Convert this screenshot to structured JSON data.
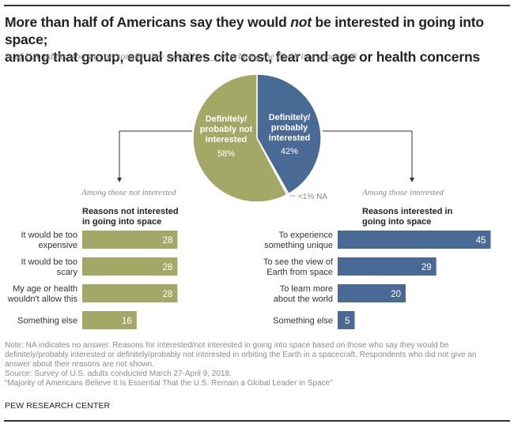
{
  "title": {
    "line1_pre": "More than half of Americans say they would ",
    "line1_em": "not",
    "line1_post": " be interested in going into space;",
    "line2": "among that group, equal shares cite cost, fear and age or health concerns"
  },
  "subtitle": "% of U.S. adults who say, personally, they would be ___ in orbiting the Earth in a spacecraft",
  "colors": {
    "not_interested": "#a3a866",
    "interested": "#4a6a96",
    "na": "#d9d9c8"
  },
  "chart_data": [
    {
      "type": "pie",
      "title": "% of U.S. adults who say, personally, they would be ___ in orbiting the Earth in a spacecraft",
      "slices": [
        {
          "label_lines": [
            "Definitely/",
            "probably",
            "interested"
          ],
          "label": "Definitely/probably interested",
          "value": 42,
          "value_label": "42%"
        },
        {
          "label_lines": [
            "Definitely/",
            "probably not",
            "interested"
          ],
          "label": "Definitely/probably not interested",
          "value": 58,
          "value_label": "58%"
        },
        {
          "label": "NA",
          "value": 0.5,
          "value_label": "<1% NA"
        }
      ]
    },
    {
      "type": "bar",
      "orientation": "horizontal",
      "caption": "Among those not interested",
      "title": "Reasons not interested in going into space",
      "title_lines": [
        "Reasons not interested",
        "in going into space"
      ],
      "categories": [
        "It would be too expensive",
        "It would be too scary",
        "My age or health wouldn't allow this",
        "Something else"
      ],
      "category_lines": [
        [
          "It would be too",
          "expensive"
        ],
        [
          "It would be too",
          "scary"
        ],
        [
          "My age or health",
          "wouldn't allow this"
        ],
        [
          "Something else"
        ]
      ],
      "values": [
        28,
        28,
        28,
        16
      ]
    },
    {
      "type": "bar",
      "orientation": "horizontal",
      "caption": "Among those interested",
      "title": "Reasons interested in going into space",
      "title_lines": [
        "Reasons interested  in",
        "going into space"
      ],
      "categories": [
        "To experience something unique",
        "To see the view of Earth from space",
        "To learn more about the world",
        "Something else"
      ],
      "category_lines": [
        [
          "To experience",
          "something unique"
        ],
        [
          "To see the view of",
          "Earth from space"
        ],
        [
          "To learn more",
          "about the world"
        ],
        [
          "Something else"
        ]
      ],
      "values": [
        45,
        29,
        20,
        5
      ]
    }
  ],
  "notes": [
    "Note: NA indicates no answer. Reasons for interested/not interested in going into space based on those who say they would be",
    "definitely/probably interested or definitely/probably not interested in orbiting the Earth in a spacecraft. Respondents who did not give an",
    "answer about their reasons are not shown.",
    "Source: Survey of U.S. adults conducted March 27-April 9, 2018.",
    "“Majority of Americans Believe It Is Essential That the U.S. Remain a Global Leader in Space”"
  ],
  "source_org": "PEW RESEARCH CENTER"
}
